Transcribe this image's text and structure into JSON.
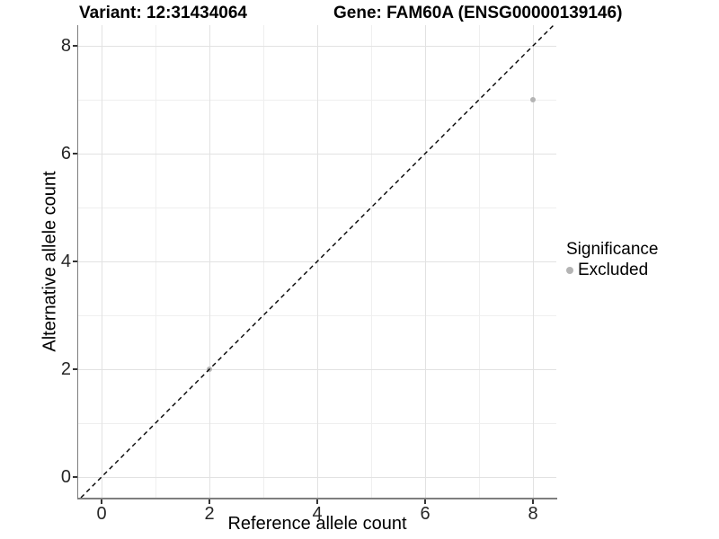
{
  "titles": {
    "variant": "Variant: 12:31434064",
    "gene": "Gene: FAM60A (ENSG00000139146)"
  },
  "legend": {
    "title": "Significance",
    "items": [
      {
        "label": "Excluded",
        "color": "#b4b4b4"
      }
    ]
  },
  "chart_data": {
    "type": "scatter",
    "title": "Variant: 12:31434064  |  Gene: FAM60A (ENSG00000139146)",
    "xlabel": "Reference allele count",
    "ylabel": "Alternative allele count",
    "xlim": [
      -0.425,
      8.425
    ],
    "ylim": [
      -0.425,
      8.425
    ],
    "x_ticks": {
      "values": [
        0,
        2,
        4,
        6,
        8
      ],
      "labels": [
        "0",
        "2",
        "4",
        "6",
        "8"
      ]
    },
    "y_ticks": {
      "values": [
        0,
        2,
        4,
        6,
        8
      ],
      "labels": [
        "0",
        "2",
        "4",
        "6",
        "8"
      ]
    },
    "x_minor_breaks": [
      1,
      3,
      5,
      7
    ],
    "y_minor_breaks": [
      1,
      3,
      5,
      7
    ],
    "grid": "on",
    "legend_position": "right",
    "series": [
      {
        "name": "Excluded",
        "color": "#b4b4b4",
        "points": [
          {
            "x": 2,
            "y": 2
          },
          {
            "x": 8,
            "y": 7
          }
        ]
      }
    ],
    "reference_line": {
      "type": "identity y=x",
      "style": "dashed",
      "color": "#000000"
    }
  },
  "colors": {
    "axis_line": "#7f7f7f",
    "tick": "#333333",
    "grid_major": "#e2e2e2",
    "grid_minor": "#efefef",
    "point_excluded": "#b4b4b4",
    "dashed_line": "#000000"
  }
}
